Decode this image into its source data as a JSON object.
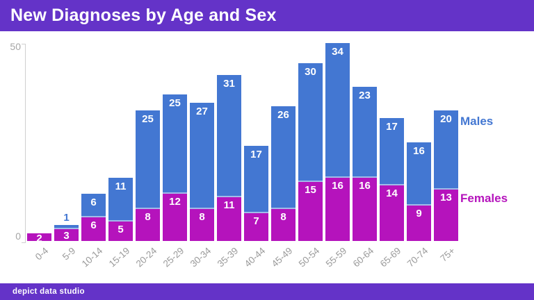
{
  "header": {
    "title": "New Diagnoses by Age and Sex"
  },
  "axis": {
    "y_max_label": "50",
    "y_min_label": "0"
  },
  "legend": {
    "males": "Males",
    "females": "Females"
  },
  "footer": {
    "brand": "depict data studio"
  },
  "colors": {
    "purple": "#6433c8",
    "male_blue": "#4377d2",
    "female_magenta": "#b513bc",
    "axis_gray": "#a5a5a5",
    "xlabel_gray": "#9a9a9a",
    "value_label_white": "#ffffff"
  },
  "chart_data": {
    "type": "bar",
    "stacked": true,
    "title": "New Diagnoses by Age and Sex",
    "categories": [
      "0-4",
      "5-9",
      "10-14",
      "15-19",
      "20-24",
      "25-29",
      "30-34",
      "35-39",
      "40-44",
      "45-49",
      "50-54",
      "55-59",
      "60-64",
      "65-69",
      "70-74",
      "75+"
    ],
    "series": [
      {
        "name": "Females",
        "color": "#b513bc",
        "values": [
          2,
          3,
          6,
          5,
          8,
          12,
          8,
          11,
          7,
          8,
          15,
          16,
          16,
          14,
          9,
          13
        ]
      },
      {
        "name": "Males",
        "color": "#4377d2",
        "values": [
          0,
          1,
          6,
          11,
          25,
          25,
          27,
          31,
          17,
          26,
          30,
          34,
          23,
          17,
          16,
          20
        ]
      }
    ],
    "xlabel": "",
    "ylabel": "",
    "ylim": [
      0,
      50
    ],
    "yticks": [
      0,
      50
    ],
    "grid": false,
    "legend_position": "right",
    "value_labels": "inside-top"
  }
}
